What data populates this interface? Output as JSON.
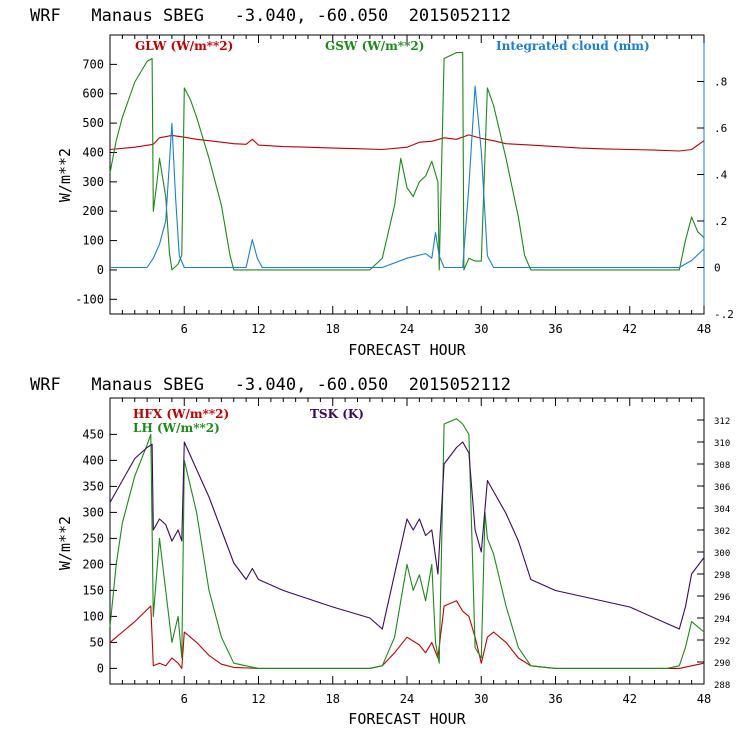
{
  "colors": {
    "red": "#c00000",
    "green": "#1a8a1a",
    "blue": "#1a7fd4",
    "purple": "#3a0a5a",
    "axis": "#000000"
  },
  "chart_data": [
    {
      "type": "line",
      "title": "WRF   Manaus SBEG   -3.040, -60.050  2015052112",
      "xlabel": "FORECAST HOUR",
      "ylabel": "W/m**2",
      "xlim": [
        0,
        48
      ],
      "ylim": [
        -150,
        800
      ],
      "xticks": [
        6,
        12,
        18,
        24,
        30,
        36,
        42,
        48
      ],
      "yticks": [
        -100,
        0,
        100,
        200,
        300,
        400,
        500,
        600,
        700
      ],
      "y2lim": [
        -0.2,
        1.0
      ],
      "y2ticks": [
        -0.2,
        0,
        0.2,
        0.4,
        0.6,
        0.8
      ],
      "y2ticklabels": [
        "-.2",
        "0",
        ".2",
        ".4",
        ".6",
        ".8"
      ],
      "series": [
        {
          "name": "GLW (W/m**2)",
          "axis": "left",
          "color": "#c00000",
          "x": [
            0,
            2,
            3.5,
            4,
            5,
            6,
            7,
            8,
            9,
            10,
            11,
            11.5,
            12,
            14,
            16,
            18,
            20,
            22,
            24,
            25,
            26,
            27,
            28,
            29,
            30,
            31,
            32,
            34,
            36,
            38,
            40,
            42,
            44,
            46,
            47,
            48
          ],
          "y": [
            410,
            418,
            428,
            450,
            458,
            452,
            445,
            440,
            435,
            430,
            428,
            445,
            425,
            420,
            418,
            415,
            413,
            410,
            418,
            435,
            438,
            450,
            445,
            460,
            448,
            440,
            430,
            425,
            420,
            415,
            412,
            410,
            408,
            405,
            410,
            440
          ]
        },
        {
          "name": "GSW (W/m**2)",
          "axis": "left",
          "color": "#1a8a1a",
          "x": [
            0,
            0.5,
            1,
            2,
            3,
            3.4,
            3.5,
            3.8,
            4,
            4.5,
            4.8,
            5,
            5.5,
            5.8,
            6,
            6.5,
            7,
            8,
            9,
            9.7,
            10,
            12,
            18,
            21,
            22,
            23,
            23.5,
            24,
            24.5,
            25,
            25.5,
            26,
            26.5,
            26.6,
            27,
            28,
            28.5,
            28.6,
            29,
            29.5,
            30,
            30.5,
            31,
            32,
            33,
            33.5,
            34,
            36,
            42,
            45,
            46,
            46.5,
            47,
            47.5,
            48
          ],
          "y": [
            330,
            440,
            520,
            640,
            710,
            720,
            200,
            300,
            380,
            250,
            60,
            0,
            20,
            50,
            620,
            580,
            520,
            380,
            220,
            50,
            0,
            0,
            0,
            0,
            40,
            220,
            380,
            280,
            250,
            300,
            320,
            370,
            300,
            0,
            720,
            740,
            740,
            0,
            40,
            30,
            30,
            620,
            560,
            380,
            180,
            50,
            0,
            0,
            0,
            0,
            0,
            100,
            180,
            130,
            110
          ]
        },
        {
          "name": "Integrated cloud (mm)",
          "axis": "right",
          "color": "#1a7fd4",
          "x": [
            0,
            2,
            3,
            3.5,
            4,
            4.5,
            5,
            5.3,
            5.6,
            6,
            11,
            11.5,
            11.9,
            12.3,
            13,
            20,
            22,
            24,
            25.5,
            26,
            26.3,
            26.6,
            27,
            28.5,
            29,
            29.5,
            30,
            30.5,
            31,
            32,
            40,
            46,
            47,
            48
          ],
          "y": [
            0,
            0,
            0,
            0.04,
            0.1,
            0.2,
            0.62,
            0.3,
            0.05,
            0,
            0,
            0.12,
            0.04,
            0,
            0,
            0,
            0,
            0.04,
            0.06,
            0.04,
            0.15,
            0.05,
            0,
            0,
            0.35,
            0.78,
            0.5,
            0.05,
            0,
            0,
            0,
            0,
            0.03,
            0.08
          ]
        }
      ]
    },
    {
      "type": "line",
      "title": "WRF   Manaus SBEG   -3.040, -60.050  2015052112",
      "xlabel": "FORECAST HOUR",
      "ylabel": "W/m**2",
      "xlim": [
        0,
        48
      ],
      "ylim": [
        -30,
        520
      ],
      "xticks": [
        6,
        12,
        18,
        24,
        30,
        36,
        42,
        48
      ],
      "yticks": [
        0,
        50,
        100,
        150,
        200,
        250,
        300,
        350,
        400,
        450
      ],
      "y2lim": [
        288,
        314
      ],
      "y2ticks": [
        288,
        290,
        292,
        294,
        296,
        298,
        300,
        302,
        304,
        306,
        308,
        310,
        312
      ],
      "series": [
        {
          "name": "HFX (W/m**2)",
          "axis": "left",
          "color": "#c00000",
          "x": [
            0,
            1,
            2,
            3.3,
            3.5,
            4,
            4.5,
            5,
            5.5,
            5.8,
            6,
            7,
            8,
            9,
            10,
            12,
            18,
            21,
            22,
            23,
            24,
            25,
            25.5,
            26,
            26.5,
            27,
            28,
            28.5,
            29,
            29.5,
            30,
            30.5,
            31,
            32,
            33,
            34,
            36,
            42,
            45,
            46,
            47,
            48
          ],
          "y": [
            50,
            70,
            90,
            120,
            5,
            10,
            5,
            20,
            10,
            0,
            70,
            50,
            25,
            8,
            2,
            0,
            0,
            0,
            5,
            30,
            60,
            45,
            30,
            50,
            20,
            120,
            130,
            110,
            100,
            60,
            10,
            60,
            70,
            50,
            20,
            5,
            0,
            0,
            0,
            0,
            5,
            10
          ]
        },
        {
          "name": "LH  (W/m**2)",
          "axis": "left",
          "color": "#1a8a1a",
          "x": [
            0,
            0.5,
            1,
            2,
            3,
            3.3,
            3.5,
            4,
            4.5,
            5,
            5.5,
            5.8,
            6,
            7,
            8,
            9,
            10,
            12,
            18,
            21,
            22,
            23,
            24,
            24.5,
            25,
            25.5,
            26,
            26.3,
            26.6,
            27,
            28,
            28.5,
            29,
            29.5,
            30,
            30.3,
            30.5,
            31,
            32,
            33,
            34,
            36,
            42,
            45,
            46,
            46.5,
            47,
            48
          ],
          "y": [
            80,
            200,
            280,
            370,
            430,
            450,
            100,
            250,
            150,
            50,
            100,
            20,
            400,
            300,
            150,
            60,
            10,
            0,
            0,
            0,
            5,
            60,
            200,
            150,
            180,
            130,
            200,
            50,
            10,
            470,
            480,
            470,
            450,
            40,
            20,
            300,
            250,
            220,
            120,
            40,
            5,
            0,
            0,
            0,
            5,
            40,
            90,
            70
          ]
        },
        {
          "name": "TSK (K)",
          "axis": "right",
          "color": "#3a0a5a",
          "x": [
            0,
            1,
            2,
            3,
            3.4,
            3.5,
            4,
            4.5,
            5,
            5.5,
            5.8,
            6,
            7,
            8,
            9,
            10,
            11,
            11.5,
            12,
            14,
            18,
            21,
            22,
            23,
            24,
            24.5,
            25,
            25.5,
            26,
            26.5,
            27,
            28,
            28.5,
            29,
            29.5,
            30,
            30.5,
            31,
            32,
            33,
            34,
            36,
            42,
            45,
            46,
            46.5,
            47,
            48
          ],
          "y": [
            304.5,
            306.5,
            308.5,
            309.5,
            309.8,
            302,
            303,
            302.5,
            301,
            302,
            301,
            310,
            307.5,
            305,
            302,
            299,
            297.5,
            298.5,
            297.5,
            296.5,
            295,
            294,
            293,
            298,
            303,
            302,
            303,
            301.5,
            302,
            298,
            308,
            309.5,
            310,
            309,
            302,
            300,
            306.5,
            305.5,
            303.5,
            301,
            297.5,
            296.5,
            295,
            293.5,
            293,
            295,
            298,
            299.5
          ]
        }
      ]
    }
  ],
  "legends": {
    "top": {
      "glw": "GLW (W/m**2)",
      "gsw": "GSW (W/m**2)",
      "cloud": "Integrated cloud (mm)"
    },
    "bottom": {
      "hfx": "HFX (W/m**2)",
      "lh": "LH  (W/m**2)",
      "tsk": "TSK (K)"
    }
  }
}
